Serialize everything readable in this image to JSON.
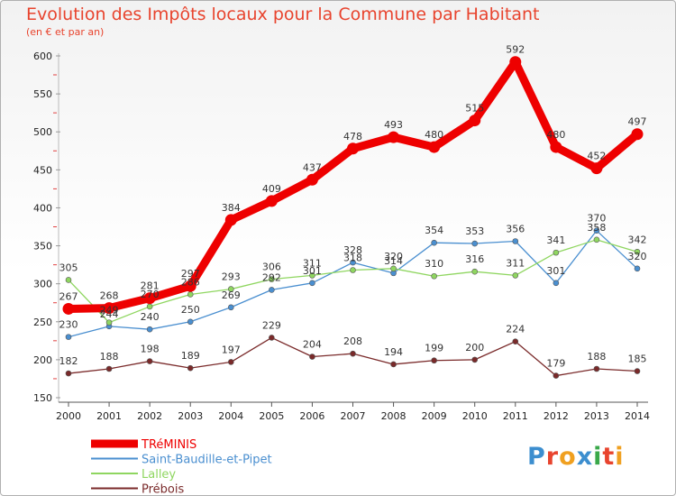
{
  "title": "Evolution des Impôts locaux pour la Commune par Habitant",
  "subtitle": "(en € et par an)",
  "logo": {
    "text": "Proxiti",
    "colors": [
      "#3c8ecf",
      "#e8442e",
      "#f0a020",
      "#3c8ecf",
      "#3aa84a",
      "#e8442e",
      "#f0a020"
    ]
  },
  "chart_data": {
    "type": "line",
    "title": "Evolution des Impôts locaux pour la Commune par Habitant",
    "subtitle": "(en € et par an)",
    "x": [
      "2000",
      "2001",
      "2002",
      "2003",
      "2004",
      "2005",
      "2006",
      "2007",
      "2008",
      "2009",
      "2010",
      "2011",
      "2012",
      "2013",
      "2014"
    ],
    "ylim": [
      150,
      600
    ],
    "yticks": [
      150,
      200,
      250,
      300,
      350,
      400,
      450,
      500,
      550,
      600
    ],
    "grid": false,
    "legend_position": "bottom-left",
    "series": [
      {
        "name": "TRéMINIS",
        "color": "#ee0000",
        "emphasis": true,
        "values": [
          267,
          268,
          281,
          297,
          384,
          409,
          437,
          478,
          493,
          480,
          515,
          592,
          480,
          452,
          497
        ]
      },
      {
        "name": "Saint-Baudille-et-Pipet",
        "color": "#4a8fd0",
        "values": [
          230,
          244,
          240,
          250,
          269,
          292,
          301,
          328,
          314,
          354,
          353,
          356,
          301,
          370,
          320
        ]
      },
      {
        "name": "Lalley",
        "color": "#8fd660",
        "values": [
          305,
          249,
          270,
          286,
          293,
          306,
          311,
          318,
          320,
          310,
          316,
          311,
          341,
          358,
          342
        ]
      },
      {
        "name": "Prébois",
        "color": "#7a2a2a",
        "values": [
          182,
          188,
          198,
          189,
          197,
          229,
          204,
          208,
          194,
          199,
          200,
          224,
          179,
          188,
          185
        ]
      }
    ]
  }
}
